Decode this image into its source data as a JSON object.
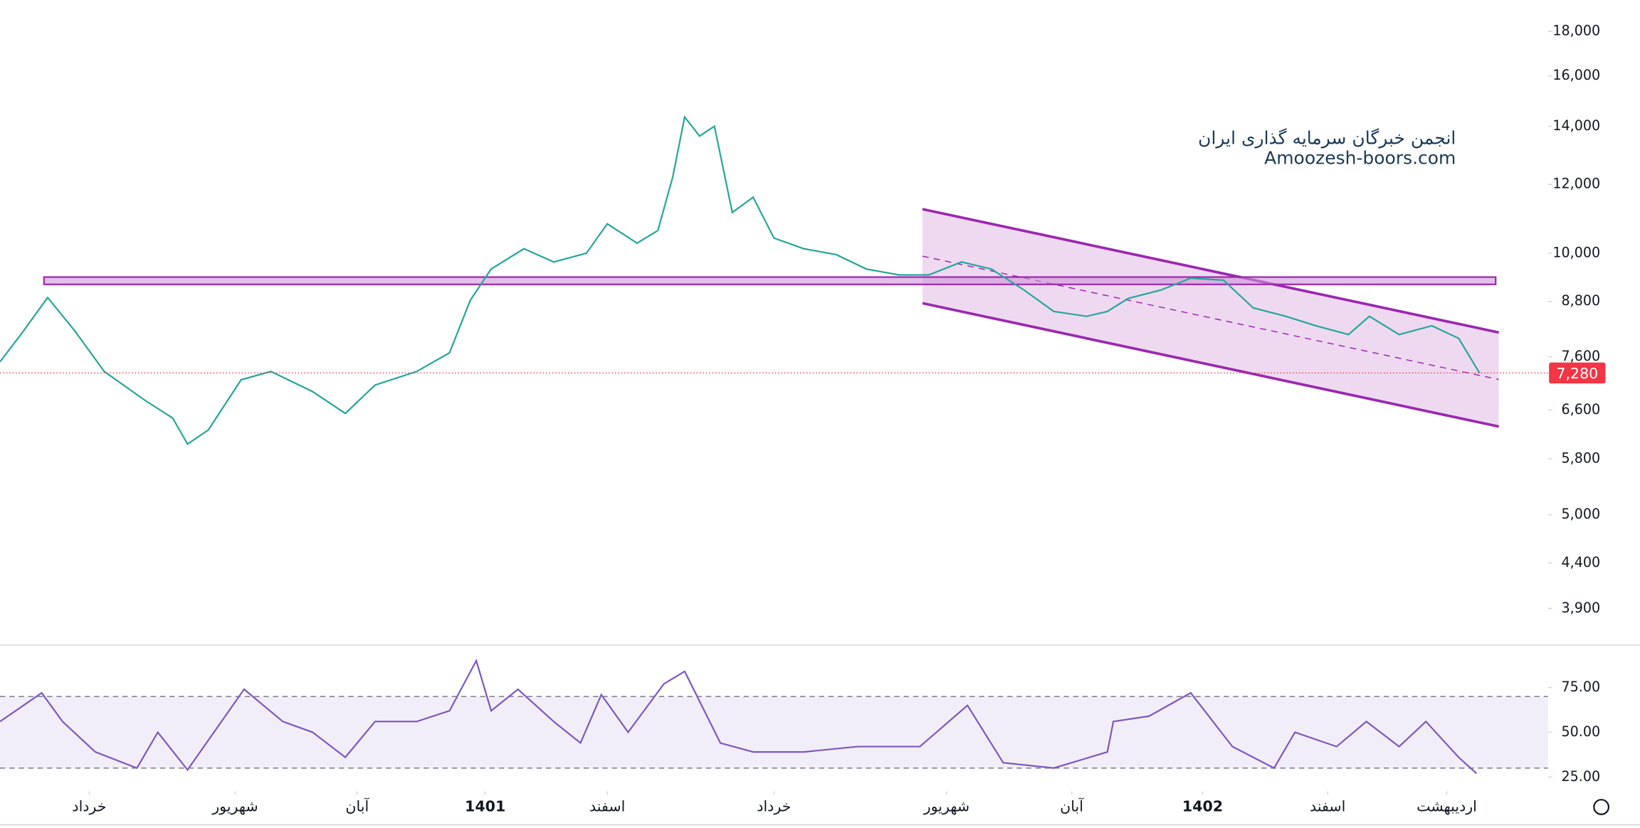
{
  "chart_data": [
    {
      "type": "line",
      "name": "price",
      "log": true,
      "grid": false,
      "annotations": [
        "انجمن خبرگان سرمایه گذاری ایران",
        "Amoozesh-boors.com"
      ],
      "xlim": [
        0,
        520
      ],
      "xticks": [
        {
          "value": 30,
          "label": "خرداد"
        },
        {
          "value": 79,
          "label": "شهریور"
        },
        {
          "value": 120,
          "label": "آبان"
        },
        {
          "value": 163,
          "label": "1401"
        },
        {
          "value": 204,
          "label": "اسفند"
        },
        {
          "value": 260,
          "label": "خرداد"
        },
        {
          "value": 318,
          "label": "شهریور"
        },
        {
          "value": 360,
          "label": "آبان"
        },
        {
          "value": 404,
          "label": "1402"
        },
        {
          "value": 446,
          "label": "اسفند"
        },
        {
          "value": 486,
          "label": "اردیبهشت"
        }
      ],
      "ylim": [
        3540,
        19560
      ],
      "yticks": [
        {
          "value": 18000,
          "label": "18,000"
        },
        {
          "value": 16000,
          "label": "16,000"
        },
        {
          "value": 14000,
          "label": "14,000"
        },
        {
          "value": 12000,
          "label": "12,000"
        },
        {
          "value": 10000,
          "label": "10,000"
        },
        {
          "value": 8800,
          "label": "8,800"
        },
        {
          "value": 7600,
          "label": "7,600"
        },
        {
          "value": 6600,
          "label": "6,600"
        },
        {
          "value": 5800,
          "label": "5,800"
        },
        {
          "value": 5000,
          "label": "5,000"
        },
        {
          "value": 4400,
          "label": "4,400"
        },
        {
          "value": 3900,
          "label": "3,900"
        }
      ],
      "last_price": {
        "value": 7280,
        "label": "7,280",
        "color": "#f23645"
      },
      "series": [
        {
          "name": "close",
          "color": "#26a69a",
          "x": [
            0,
            7,
            16,
            25,
            35,
            49,
            58,
            63,
            70,
            81,
            91,
            105,
            116,
            126,
            140,
            151,
            158,
            165,
            176,
            186,
            197,
            204,
            214,
            221,
            226,
            230,
            235,
            240,
            246,
            253,
            260,
            270,
            281,
            291,
            302,
            312,
            323,
            333,
            344,
            354,
            365,
            372,
            379,
            390,
            400,
            411,
            421,
            432,
            442,
            453,
            460,
            470,
            481,
            490,
            497
          ],
          "values": [
            7500,
            8060,
            8890,
            8150,
            7310,
            6760,
            6460,
            6030,
            6260,
            7150,
            7310,
            6930,
            6540,
            7050,
            7310,
            7680,
            8830,
            9590,
            10120,
            9770,
            10000,
            10810,
            10270,
            10620,
            12240,
            14350,
            13640,
            14000,
            11140,
            11600,
            10410,
            10120,
            9960,
            9590,
            9440,
            9440,
            9770,
            9590,
            9070,
            8570,
            8460,
            8570,
            8870,
            9070,
            9360,
            9310,
            8650,
            8460,
            8250,
            8060,
            8460,
            8060,
            8250,
            7980,
            7280
          ]
        }
      ]
    },
    {
      "type": "line",
      "name": "rsi",
      "grid": false,
      "ylim": [
        17,
        97
      ],
      "yticks": [
        {
          "value": 75,
          "label": "75.00"
        },
        {
          "value": 50,
          "label": "50.00"
        },
        {
          "value": 25,
          "label": "25.00"
        }
      ],
      "band": [
        30,
        70
      ],
      "band_color": "#7e57c2",
      "series": [
        {
          "name": "RSI",
          "color": "#7e57c2",
          "x": [
            0,
            14,
            21,
            32,
            46,
            53,
            63,
            82,
            95,
            105,
            116,
            126,
            140,
            151,
            160,
            165,
            174,
            186,
            195,
            202,
            211,
            223,
            230,
            242,
            253,
            270,
            288,
            309,
            325,
            337,
            354,
            372,
            374,
            386,
            400,
            414,
            428,
            435,
            449,
            459,
            470,
            479,
            490,
            496
          ],
          "values": [
            56,
            72,
            56,
            39,
            30,
            50,
            29,
            74,
            56,
            50,
            36,
            56,
            56,
            62,
            90,
            62,
            74,
            56,
            44,
            71,
            50,
            77,
            84,
            44,
            39,
            39,
            42,
            42,
            65,
            33,
            30,
            39,
            56,
            59,
            72,
            42,
            30,
            50,
            42,
            56,
            42,
            56,
            36,
            27
          ]
        }
      ]
    }
  ]
}
